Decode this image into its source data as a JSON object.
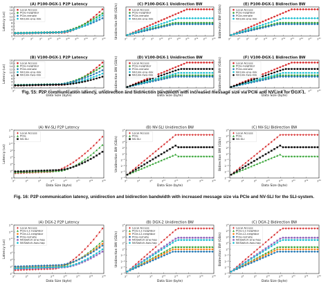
{
  "captions": [
    "Fig. 15: P2P communication latency, unidirection and bidirection bandwidth with increased message size via PCIe and NVLink for DGX-1.",
    "Fig. 16: P2P communication latency, unidirection and bidirection bandwidth with increased message size via PCIe and NV-SLI for the SLI-system."
  ],
  "chart_data": [
    {
      "type": "line",
      "title": "(A) P100-DGX-1 P2P Latency",
      "xlabel": "",
      "ylabel": "Latency (us)",
      "x_ticks": [
        "2^0",
        "2^3",
        "2^6",
        "2^9",
        "2^12",
        "2^15",
        "2^18",
        "2^21",
        "2^24",
        "2^27",
        "2^30"
      ],
      "y_ticks": [
        "0",
        "2",
        "4",
        "6",
        "8",
        "10",
        "12",
        "14",
        "16",
        "18"
      ],
      "legend": "top-left",
      "series": [
        {
          "name": "Local Access",
          "color": "#d62728",
          "marker": "dot"
        },
        {
          "name": "PCIe-neighbor",
          "color": "#2ca02c",
          "marker": "dot"
        },
        {
          "name": "PCIe-remote",
          "color": "#1f77b4",
          "marker": "dot"
        },
        {
          "name": "NVLink-one-link",
          "color": "#17becf",
          "marker": "dot"
        }
      ]
    },
    {
      "type": "line",
      "title": "(C) P100-DGX-1 Unidirection BW",
      "xlabel": "",
      "ylabel": "Unidirection BW (GB/s)",
      "x_ticks": [
        "2^0",
        "2^3",
        "2^6",
        "2^9",
        "2^12",
        "2^15",
        "2^18",
        "2^21",
        "2^24",
        "2^27",
        "2^30"
      ],
      "legend": "top-left",
      "series": [
        {
          "name": "Local Access",
          "color": "#d62728",
          "marker": "dot"
        },
        {
          "name": "PCIe-neighbor",
          "color": "#2ca02c",
          "marker": "dot"
        },
        {
          "name": "PCIe-remote",
          "color": "#1f77b4",
          "marker": "dot"
        },
        {
          "name": "NVLink-one-link",
          "color": "#17becf",
          "marker": "dot"
        }
      ]
    },
    {
      "type": "line",
      "title": "(E) P100-DGX-1 Bidirection BW",
      "xlabel": "",
      "ylabel": "Bidirection BW (GB/s)",
      "x_ticks": [
        "2^0",
        "2^3",
        "2^6",
        "2^9",
        "2^12",
        "2^15",
        "2^18",
        "2^21",
        "2^24",
        "2^27",
        "2^30"
      ],
      "legend": "top-left",
      "series": [
        {
          "name": "Local Access",
          "color": "#d62728",
          "marker": "dot"
        },
        {
          "name": "PCIe-neighbor",
          "color": "#2ca02c",
          "marker": "dot"
        },
        {
          "name": "PCIe-remote",
          "color": "#1f77b4",
          "marker": "dot"
        },
        {
          "name": "NVLink-one-link",
          "color": "#17becf",
          "marker": "dot"
        }
      ]
    },
    {
      "type": "line",
      "title": "(B) V100-DGX-1 P2P Latency",
      "xlabel": "Data Size (byte)",
      "ylabel": "Latency (us)",
      "x_ticks": [
        "2^0",
        "2^3",
        "2^6",
        "2^9",
        "2^12",
        "2^15",
        "2^18",
        "2^21",
        "2^24",
        "2^27",
        "2^30"
      ],
      "y_ticks": [
        "0",
        "2",
        "4",
        "6",
        "8",
        "10",
        "12",
        "14",
        "16",
        "18"
      ],
      "legend": "top-left",
      "series": [
        {
          "name": "Local Access",
          "color": "#d62728",
          "marker": "dot"
        },
        {
          "name": "PCIe-neighbor",
          "color": "#2ca02c",
          "marker": "dot"
        },
        {
          "name": "PCIe-remote",
          "color": "#1f77b4",
          "marker": "dot"
        },
        {
          "name": "NVLink-one-link",
          "color": "#17becf",
          "marker": "dot"
        },
        {
          "name": "NVLink-two-link",
          "color": "#000000",
          "marker": "dot"
        }
      ]
    },
    {
      "type": "line",
      "title": "(D) V100-DGX-1 Unidirection BW",
      "xlabel": "Data Size (byte)",
      "ylabel": "Unidirection BW (GB/s)",
      "x_ticks": [
        "2^0",
        "2^3",
        "2^6",
        "2^9",
        "2^12",
        "2^15",
        "2^18",
        "2^21",
        "2^24",
        "2^27",
        "2^30"
      ],
      "legend": "top-left",
      "series": [
        {
          "name": "Local Access",
          "color": "#d62728",
          "marker": "dot"
        },
        {
          "name": "PCIe-neighbor",
          "color": "#2ca02c",
          "marker": "dot"
        },
        {
          "name": "PCIe-remote",
          "color": "#1f77b4",
          "marker": "dot"
        },
        {
          "name": "NVLink-one-link",
          "color": "#17becf",
          "marker": "dot"
        },
        {
          "name": "NVLink-two-link",
          "color": "#000000",
          "marker": "dot"
        }
      ]
    },
    {
      "type": "line",
      "title": "(F) V100-DGX-1 Bidirection BW",
      "xlabel": "Data Size (byte)",
      "ylabel": "Bidirection BW (GB/s)",
      "x_ticks": [
        "2^0",
        "2^3",
        "2^6",
        "2^9",
        "2^12",
        "2^15",
        "2^18",
        "2^21",
        "2^24",
        "2^27",
        "2^30"
      ],
      "legend": "top-left",
      "series": [
        {
          "name": "Local Access",
          "color": "#d62728",
          "marker": "dot"
        },
        {
          "name": "PCIe-neighbor",
          "color": "#2ca02c",
          "marker": "dot"
        },
        {
          "name": "PCIe-remote",
          "color": "#1f77b4",
          "marker": "dot"
        },
        {
          "name": "NVLink-one-link",
          "color": "#17becf",
          "marker": "dot"
        },
        {
          "name": "NVLink-two-link",
          "color": "#000000",
          "marker": "dot"
        }
      ]
    },
    {
      "type": "line",
      "title": "(A) NV-SLI P2P Latency",
      "xlabel": "Data Size (byte)",
      "ylabel": "Latency (us)",
      "x_ticks": [
        "2^0",
        "2^4",
        "2^8",
        "2^12",
        "2^16",
        "2^20",
        "2^24",
        "2^28"
      ],
      "y_ticks": [
        "0",
        "2^2",
        "2^4",
        "2^6",
        "2^8",
        "2^10",
        "2^12",
        "2^14"
      ],
      "legend": "top-left",
      "series": [
        {
          "name": "Local Access",
          "color": "#d62728",
          "marker": "diamond"
        },
        {
          "name": "PCIe",
          "color": "#2ca02c",
          "marker": "triangle"
        },
        {
          "name": "NV-SLI",
          "color": "#111111",
          "marker": "square"
        }
      ]
    },
    {
      "type": "line",
      "title": "(B) NV-SLI Unidirection BW",
      "xlabel": "Data Size (byte)",
      "ylabel": "Unidirection BW (GB/s)",
      "x_ticks": [
        "2^0",
        "2^4",
        "2^8",
        "2^12",
        "2^16",
        "2^20",
        "2^24",
        "2^28"
      ],
      "y_ticks": [
        "2^-8",
        "2^-6",
        "2^-4",
        "2^-2",
        "2^0",
        "2^2",
        "2^4",
        "2^6",
        "2^8"
      ],
      "legend": "top-left",
      "series": [
        {
          "name": "Local Access",
          "color": "#d62728",
          "marker": "diamond"
        },
        {
          "name": "PCIe",
          "color": "#2ca02c",
          "marker": "triangle"
        },
        {
          "name": "NV-SLI",
          "color": "#111111",
          "marker": "square"
        }
      ]
    },
    {
      "type": "line",
      "title": "(C) NV-SLI Bidirection BW",
      "xlabel": "Data Size (byte)",
      "ylabel": "Bidirection BW (GB/s)",
      "x_ticks": [
        "2^0",
        "2^4",
        "2^8",
        "2^12",
        "2^16",
        "2^20",
        "2^24",
        "2^28"
      ],
      "y_ticks": [
        "2^-8",
        "2^-6",
        "2^-4",
        "2^-2",
        "2^0",
        "2^2",
        "2^4",
        "2^6",
        "2^8"
      ],
      "legend": "top-left",
      "series": [
        {
          "name": "Local Access",
          "color": "#d62728",
          "marker": "diamond"
        },
        {
          "name": "PCIe",
          "color": "#2ca02c",
          "marker": "triangle"
        },
        {
          "name": "NV-SLI",
          "color": "#111111",
          "marker": "square"
        }
      ]
    },
    {
      "type": "line",
      "title": "(A) DGX-2 P2P Latency",
      "xlabel": "Data Size (byte)",
      "ylabel": "Latency (us)",
      "x_ticks": [
        "2^0",
        "2^4",
        "2^8",
        "2^12",
        "2^16",
        "2^20",
        "2^24",
        "2^28"
      ],
      "y_ticks": [
        "2^0",
        "2^2",
        "2^4",
        "2^6",
        "2^8",
        "2^10",
        "2^12",
        "2^14"
      ],
      "legend": "top-left",
      "series": [
        {
          "name": "Local Access",
          "color": "#d62728",
          "marker": "diamond"
        },
        {
          "name": "PCIe-L1-neighbor",
          "color": "#2ca02c",
          "marker": "triangle"
        },
        {
          "name": "PCIe-L2-neighbor",
          "color": "#ff7f0e",
          "marker": "dot"
        },
        {
          "name": "PCIe-remote",
          "color": "#1f77b4",
          "marker": "dot"
        },
        {
          "name": "NVSwitch-one-hop",
          "color": "#9467bd",
          "marker": "square"
        },
        {
          "name": "NVSwitch-two-hop",
          "color": "#17becf",
          "marker": "dot"
        }
      ]
    },
    {
      "type": "line",
      "title": "(B) DGX-2 Unidirection BW",
      "xlabel": "Data Size (byte)",
      "ylabel": "Unidirection BW (GB/s)",
      "x_ticks": [
        "2^0",
        "2^4",
        "2^8",
        "2^12",
        "2^16",
        "2^20",
        "2^24",
        "2^28"
      ],
      "y_ticks": [
        "2^-8",
        "2^-6",
        "2^-4",
        "2^-2",
        "2^0",
        "2^2",
        "2^4",
        "2^6",
        "2^8"
      ],
      "legend": "top-left",
      "series": [
        {
          "name": "Local Access",
          "color": "#d62728",
          "marker": "diamond"
        },
        {
          "name": "PCIe-L1-neighbor",
          "color": "#2ca02c",
          "marker": "triangle"
        },
        {
          "name": "PCIe-L2-neighbor",
          "color": "#ff7f0e",
          "marker": "dot"
        },
        {
          "name": "PCIe-remote",
          "color": "#1f77b4",
          "marker": "dot"
        },
        {
          "name": "NVSwitch-one-hop",
          "color": "#9467bd",
          "marker": "square"
        },
        {
          "name": "NVSwitch-two-hop",
          "color": "#17becf",
          "marker": "dot"
        }
      ]
    },
    {
      "type": "line",
      "title": "(C) DGX-2 Bidirection BW",
      "xlabel": "Data Size (byte)",
      "ylabel": "Bidirection BW (GB/s)",
      "x_ticks": [
        "2^0",
        "2^4",
        "2^8",
        "2^12",
        "2^16",
        "2^20",
        "2^24",
        "2^28"
      ],
      "y_ticks": [
        "2^-8",
        "2^-6",
        "2^-4",
        "2^-2",
        "2^0",
        "2^2",
        "2^4",
        "2^6",
        "2^8"
      ],
      "legend": "top-left",
      "series": [
        {
          "name": "Local Access",
          "color": "#d62728",
          "marker": "diamond"
        },
        {
          "name": "PCIe-L1-neighbor",
          "color": "#2ca02c",
          "marker": "triangle"
        },
        {
          "name": "PCIe-L2-neighbor",
          "color": "#ff7f0e",
          "marker": "dot"
        },
        {
          "name": "PCIe-remote",
          "color": "#1f77b4",
          "marker": "dot"
        },
        {
          "name": "NVSwitch-one-hop",
          "color": "#9467bd",
          "marker": "square"
        },
        {
          "name": "NVSwitch-two-hop",
          "color": "#17becf",
          "marker": "dot"
        }
      ]
    }
  ]
}
